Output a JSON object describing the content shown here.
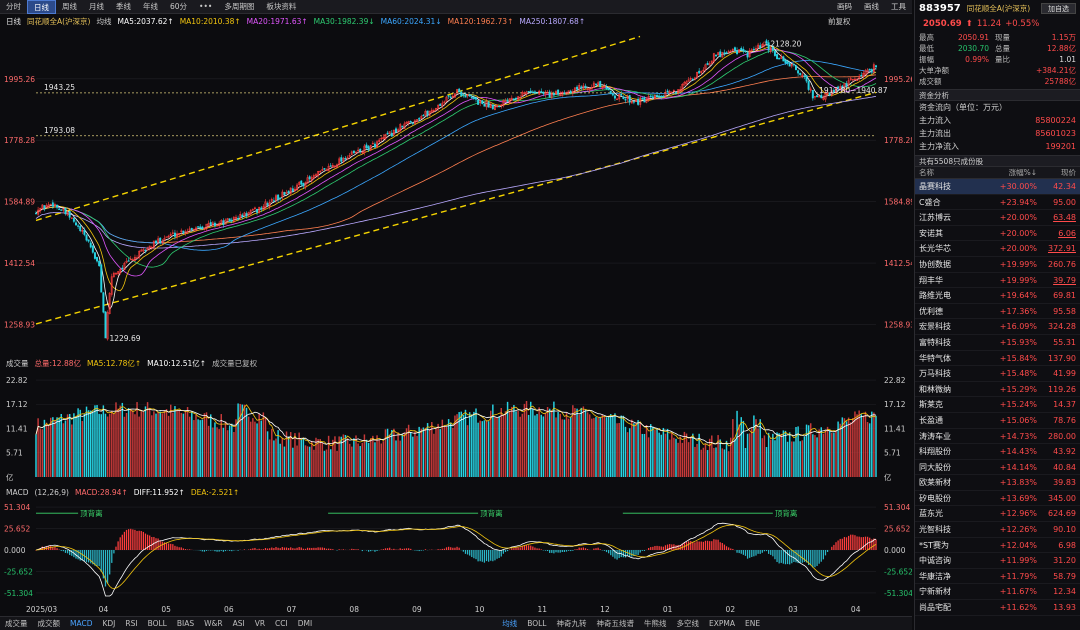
{
  "toolbar": {
    "tabs": [
      "分时",
      "日线",
      "周线",
      "月线",
      "季线",
      "年线",
      "60分",
      "•••",
      "多周期图",
      "板块资料"
    ],
    "active": 1,
    "right": [
      "画码",
      "画线",
      "工具"
    ]
  },
  "main_legend": {
    "period": "日线",
    "name": "同花顺全A(沪深京)",
    "mode": "均线",
    "ma5": "MA5:2037.62↑",
    "ma10": "MA10:2010.38↑",
    "ma20": "MA20:1971.63↑",
    "ma30": "MA30:1982.39↓",
    "ma60": "MA60:2024.31↓",
    "ma120": "MA120:1962.73↑",
    "ma250": "MA250:1807.68↑",
    "adjust": "前复权"
  },
  "colors": {
    "up": "#ff3d3d",
    "down": "#27d3e3",
    "ma5": "#ffffff",
    "ma10": "#f1c40f",
    "ma20": "#e056fd",
    "ma30": "#2ecc71",
    "ma60": "#3ba7ff",
    "ma120": "#ff7f50",
    "ma250": "#b9a9ff",
    "channel": "#f5d400",
    "macd_up": "#ff3d3d",
    "macd_down": "#2bb7c8"
  },
  "y_axis_main": [
    "1995.26",
    "1778.28",
    "1584.89",
    "1412.54",
    "1258.93"
  ],
  "annotations": {
    "high": "2128.20",
    "low": "1229.69",
    "range": "1913.80~1940.87",
    "level1": "1943.25",
    "level2": "1793.08"
  },
  "volume_legend": {
    "title": "成交量",
    "total": "总量:12.88亿",
    "ma5": "MA5:12.78亿↑",
    "ma10": "MA10:12.51亿↑",
    "note": "成交量已复权"
  },
  "y_axis_volume": [
    "22.82",
    "17.12",
    "11.41",
    "5.71",
    "亿"
  ],
  "macd_legend": {
    "title": "MACD",
    "params": "(12,26,9)",
    "macd": "MACD:28.94↑",
    "diff": "DIFF:11.952↑",
    "dea": "DEA:-2.521↑"
  },
  "y_axis_macd": [
    "51.304",
    "25.652",
    "0.000",
    "-25.652",
    "-51.304"
  ],
  "macd_labels": [
    "顶背离",
    "顶背离",
    "顶背离"
  ],
  "x_axis_months": [
    "2025/03",
    "04",
    "05",
    "06",
    "07",
    "08",
    "09",
    "10",
    "11",
    "12",
    "01",
    "02",
    "03",
    "04"
  ],
  "bottom_tabs": [
    "成交量",
    "成交额",
    "MACD",
    "KDJ",
    "RSI",
    "BOLL",
    "BIAS",
    "W&R",
    "ASI",
    "VR",
    "CCI",
    "DMI"
  ],
  "bottom_tabs2": [
    "均线",
    "BOLL",
    "神奇九转",
    "神奇五线谱",
    "牛熊线",
    "多空线",
    "EXPMA",
    "ENE"
  ],
  "side": {
    "code": "883957",
    "name": "同花顺全A(沪深京)",
    "fav": "加自选",
    "price": "2050.69",
    "arrow": "⬆",
    "change": "11.24",
    "pct": "+0.55%",
    "stats": [
      [
        "最高",
        "2050.91",
        "现量",
        "1.15万"
      ],
      [
        "最低",
        "2030.70",
        "总量",
        "12.88亿"
      ],
      [
        "振幅",
        "0.99%",
        "量比",
        "1.01"
      ],
      [
        "大单净额",
        "",
        "",
        "+384.21亿"
      ],
      [
        "成交额",
        "",
        "",
        "25788亿"
      ]
    ],
    "fund_title": "资金分析",
    "flow_unit": "资金流向（单位：万元）",
    "flows": [
      [
        "主力流入",
        "85800224"
      ],
      [
        "主力流出",
        "85601023"
      ],
      [
        "主力净流入",
        "199201"
      ]
    ],
    "count_label": "共有5508只成份股",
    "list_head": [
      "名称",
      "涨幅%↓",
      "现价"
    ],
    "stocks": [
      [
        "晶赛科技",
        "+30.00%",
        "42.34"
      ],
      [
        "C盛合",
        "+23.94%",
        "95.00"
      ],
      [
        "江苏博云",
        "+20.00%",
        "63.48"
      ],
      [
        "安诺其",
        "+20.00%",
        "6.06"
      ],
      [
        "长光华芯",
        "+20.00%",
        "372.91"
      ],
      [
        "协创数据",
        "+19.99%",
        "260.76"
      ],
      [
        "翔丰华",
        "+19.99%",
        "39.79"
      ],
      [
        "路维光电",
        "+19.64%",
        "69.81"
      ],
      [
        "优利德",
        "+17.36%",
        "95.58"
      ],
      [
        "宏景科技",
        "+16.09%",
        "324.28"
      ],
      [
        "富特科技",
        "+15.93%",
        "55.31"
      ],
      [
        "华特气体",
        "+15.84%",
        "137.90"
      ],
      [
        "万马科技",
        "+15.48%",
        "41.99"
      ],
      [
        "和林微纳",
        "+15.29%",
        "119.26"
      ],
      [
        "斯莱克",
        "+15.24%",
        "14.37"
      ],
      [
        "长盈通",
        "+15.06%",
        "78.76"
      ],
      [
        "涛涛车业",
        "+14.73%",
        "280.00"
      ],
      [
        "科翔股份",
        "+14.43%",
        "43.92"
      ],
      [
        "同大股份",
        "+14.14%",
        "40.84"
      ],
      [
        "欧莱新材",
        "+13.83%",
        "39.83"
      ],
      [
        "矽电股份",
        "+13.69%",
        "345.00"
      ],
      [
        "蓝东光",
        "+12.96%",
        "624.69"
      ],
      [
        "光智科技",
        "+12.26%",
        "90.10"
      ],
      [
        "*ST赛为",
        "+12.04%",
        "6.98"
      ],
      [
        "中诚咨询",
        "+11.99%",
        "31.20"
      ],
      [
        "华康洁净",
        "+11.79%",
        "58.79"
      ],
      [
        "宁新新材",
        "+11.67%",
        "12.34"
      ],
      [
        "尚品宅配",
        "+11.62%",
        "13.93"
      ]
    ]
  },
  "chart_data": {
    "type": "candlestick",
    "title": "同花顺全A(沪深京)",
    "period": "日线",
    "log_scale": true,
    "y_ticks": [
      1995.26,
      1778.28,
      1584.89,
      1412.54,
      1258.93
    ],
    "ylim": [
      1200,
      2170
    ],
    "x_range": [
      "2025/03",
      "2026/04"
    ],
    "close_path": [
      [
        0,
        1560
      ],
      [
        8,
        1580
      ],
      [
        16,
        1540
      ],
      [
        25,
        1470
      ],
      [
        30,
        1400
      ],
      [
        33,
        1230
      ],
      [
        36,
        1380
      ],
      [
        45,
        1420
      ],
      [
        60,
        1480
      ],
      [
        75,
        1510
      ],
      [
        90,
        1525
      ],
      [
        105,
        1560
      ],
      [
        118,
        1610
      ],
      [
        132,
        1660
      ],
      [
        146,
        1720
      ],
      [
        160,
        1760
      ],
      [
        175,
        1830
      ],
      [
        188,
        1880
      ],
      [
        200,
        1950
      ],
      [
        210,
        1910
      ],
      [
        218,
        1895
      ],
      [
        226,
        1930
      ],
      [
        236,
        1950
      ],
      [
        246,
        1935
      ],
      [
        256,
        1960
      ],
      [
        266,
        1975
      ],
      [
        276,
        1930
      ],
      [
        286,
        1912
      ],
      [
        298,
        1930
      ],
      [
        310,
        1980
      ],
      [
        322,
        2080
      ],
      [
        330,
        2110
      ],
      [
        338,
        2090
      ],
      [
        346,
        2128
      ],
      [
        352,
        2080
      ],
      [
        358,
        2050
      ],
      [
        364,
        2010
      ],
      [
        370,
        1920
      ],
      [
        376,
        1935
      ],
      [
        382,
        1960
      ],
      [
        390,
        2000
      ],
      [
        400,
        2050
      ]
    ],
    "volume_series": {
      "unit": "亿",
      "ticks": [
        22.82,
        17.12,
        11.41,
        5.71
      ],
      "total_last": 12.88,
      "ma5": 12.78,
      "ma10": 12.51
    },
    "macd_series": {
      "params": [
        12,
        26,
        9
      ],
      "ticks": [
        51.304,
        25.652,
        0,
        -25.652,
        -51.304
      ],
      "macd": 28.94,
      "diff": 11.952,
      "dea": -2.521
    }
  }
}
